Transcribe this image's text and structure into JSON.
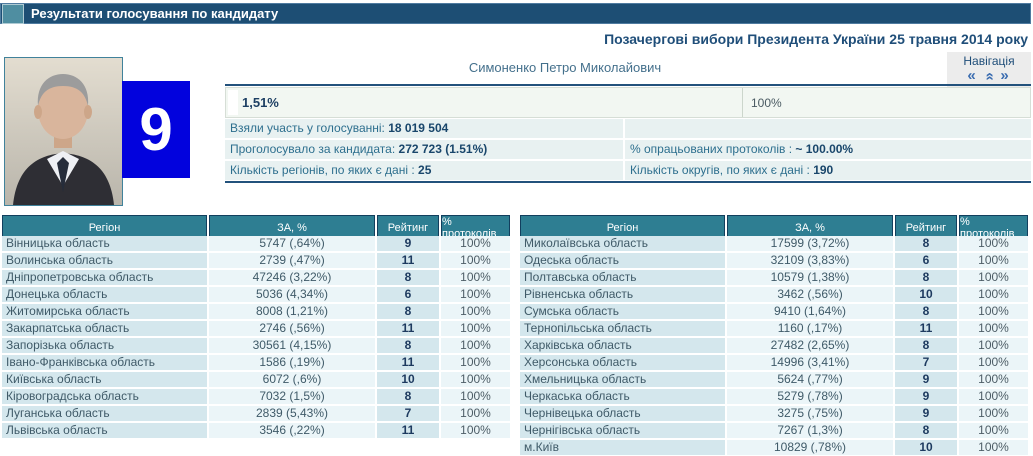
{
  "header": {
    "title": "Результати голосування по кандидату",
    "election_title": "Позачергові вибори Президента України 25 травня 2014 року"
  },
  "navigation": {
    "label": "Навігація",
    "first_icon": "«",
    "up_icon": "»",
    "last_icon": "»"
  },
  "candidate": {
    "number": "9",
    "name": "Симоненко Петро Миколайович",
    "vote_percent": "1,51%",
    "protocols_percent": "100%"
  },
  "stats": {
    "rows": [
      {
        "left_label": "Взяли участь у голосуванні:",
        "left_value": "18 019 504",
        "right_label": "",
        "right_value": ""
      },
      {
        "left_label": "Проголосувало за кандидата:",
        "left_value": "272 723 (1.51%)",
        "right_label": "% опрацьованих протоколів :",
        "right_value": "~ 100.00%"
      },
      {
        "left_label": "Кількість регіонів, по яких є дані :",
        "left_value": "25",
        "right_label": "Кількість округів, по яких є дані :",
        "right_value": "190"
      }
    ]
  },
  "tables": {
    "columns": [
      "Регіон",
      "ЗА, %",
      "Рейтинг",
      "% протоколів"
    ],
    "left_rows": [
      {
        "region": "Вінницька область",
        "votes": "5747 (,64%)",
        "rating": "9",
        "protocols": "100%"
      },
      {
        "region": "Волинська область",
        "votes": "2739 (,47%)",
        "rating": "11",
        "protocols": "100%"
      },
      {
        "region": "Дніпропетровська область",
        "votes": "47246 (3,22%)",
        "rating": "8",
        "protocols": "100%"
      },
      {
        "region": "Донецька область",
        "votes": "5036 (4,34%)",
        "rating": "6",
        "protocols": "100%"
      },
      {
        "region": "Житомирська область",
        "votes": "8008 (1,21%)",
        "rating": "8",
        "protocols": "100%"
      },
      {
        "region": "Закарпатська область",
        "votes": "2746 (,56%)",
        "rating": "11",
        "protocols": "100%"
      },
      {
        "region": "Запорізька область",
        "votes": "30561 (4,15%)",
        "rating": "8",
        "protocols": "100%"
      },
      {
        "region": "Івано-Франківська область",
        "votes": "1586 (,19%)",
        "rating": "11",
        "protocols": "100%"
      },
      {
        "region": "Київська область",
        "votes": "6072 (,6%)",
        "rating": "10",
        "protocols": "100%"
      },
      {
        "region": "Кіровоградська область",
        "votes": "7032 (1,5%)",
        "rating": "8",
        "protocols": "100%"
      },
      {
        "region": "Луганська область",
        "votes": "2839 (5,43%)",
        "rating": "7",
        "protocols": "100%"
      },
      {
        "region": "Львівська область",
        "votes": "3546 (,22%)",
        "rating": "11",
        "protocols": "100%"
      }
    ],
    "right_rows": [
      {
        "region": "Миколаївська область",
        "votes": "17599 (3,72%)",
        "rating": "8",
        "protocols": "100%"
      },
      {
        "region": "Одеська область",
        "votes": "32109 (3,83%)",
        "rating": "6",
        "protocols": "100%"
      },
      {
        "region": "Полтавська область",
        "votes": "10579 (1,38%)",
        "rating": "8",
        "protocols": "100%"
      },
      {
        "region": "Рівненська область",
        "votes": "3462 (,56%)",
        "rating": "10",
        "protocols": "100%"
      },
      {
        "region": "Сумська область",
        "votes": "9410 (1,64%)",
        "rating": "8",
        "protocols": "100%"
      },
      {
        "region": "Тернопільська область",
        "votes": "1160 (,17%)",
        "rating": "11",
        "protocols": "100%"
      },
      {
        "region": "Харківська область",
        "votes": "27482 (2,65%)",
        "rating": "8",
        "protocols": "100%"
      },
      {
        "region": "Херсонська область",
        "votes": "14996 (3,41%)",
        "rating": "7",
        "protocols": "100%"
      },
      {
        "region": "Хмельницька область",
        "votes": "5624 (,77%)",
        "rating": "9",
        "protocols": "100%"
      },
      {
        "region": "Черкаська область",
        "votes": "5279 (,78%)",
        "rating": "9",
        "protocols": "100%"
      },
      {
        "region": "Чернівецька область",
        "votes": "3275 (,75%)",
        "rating": "9",
        "protocols": "100%"
      },
      {
        "region": "Чернігівська область",
        "votes": "7267 (1,3%)",
        "rating": "8",
        "protocols": "100%"
      },
      {
        "region": "м.Київ",
        "votes": "10829 (,78%)",
        "rating": "10",
        "protocols": "100%"
      }
    ]
  },
  "colors": {
    "topbar": "#1d4e74",
    "accent_teal": "#2e7e92",
    "number_box_blue": "#0202dd",
    "dark_navy_text": "#1f4e79"
  }
}
